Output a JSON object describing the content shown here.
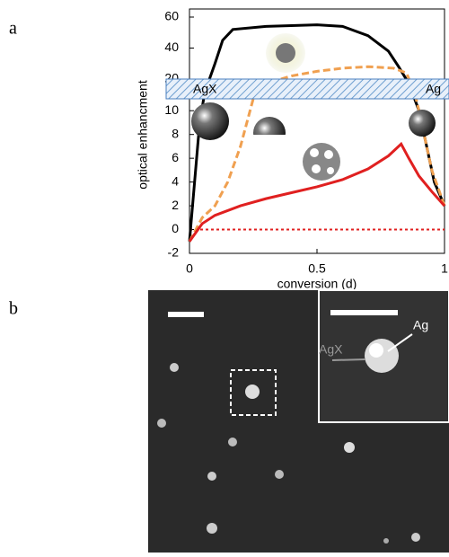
{
  "chart_data": {
    "type": "line",
    "xlabel": "conversion (d)",
    "ylabel": "optical enhancment",
    "xlim": [
      0,
      1
    ],
    "xticks": [
      0,
      0.5,
      1
    ],
    "ylim": [
      -2,
      60
    ],
    "ybreak": [
      11,
      20
    ],
    "yticks": [
      -2,
      0,
      2,
      4,
      6,
      8,
      10,
      20,
      40,
      60
    ],
    "band_labels": [
      "AgX",
      "Ag"
    ],
    "hline": 0,
    "hline_color": "#e02020",
    "series": [
      {
        "color": "#000000",
        "dash": false,
        "x": [
          0,
          0.02,
          0.04,
          0.06,
          0.1,
          0.13,
          0.17,
          0.3,
          0.5,
          0.6,
          0.7,
          0.78,
          0.82,
          0.86,
          0.9,
          0.93,
          0.96,
          1
        ],
        "values": [
          -1,
          4,
          9,
          14,
          30,
          45,
          52,
          54,
          55,
          54,
          48,
          38,
          28,
          18,
          10,
          7,
          4,
          2
        ]
      },
      {
        "color": "#f0a050",
        "dash": true,
        "x": [
          0,
          0.05,
          0.1,
          0.15,
          0.2,
          0.25,
          0.3,
          0.4,
          0.5,
          0.6,
          0.7,
          0.8,
          0.85,
          0.88,
          0.9,
          0.95,
          1
        ],
        "values": [
          -1,
          1,
          2,
          4,
          7,
          11,
          18,
          22,
          25,
          27,
          28,
          27,
          24,
          15,
          10,
          5,
          2
        ]
      },
      {
        "color": "#e02020",
        "dash": false,
        "x": [
          0,
          0.05,
          0.1,
          0.2,
          0.3,
          0.4,
          0.5,
          0.6,
          0.7,
          0.78,
          0.83,
          0.86,
          0.9,
          0.95,
          1
        ],
        "values": [
          -1,
          0.5,
          1.2,
          2,
          2.6,
          3.1,
          3.6,
          4.2,
          5.1,
          6.2,
          7.2,
          6,
          4.5,
          3.2,
          2
        ]
      }
    ]
  },
  "figure": {
    "panel_a": "a",
    "panel_b": "b",
    "image_labels": [
      "AgX",
      "Ag"
    ]
  }
}
